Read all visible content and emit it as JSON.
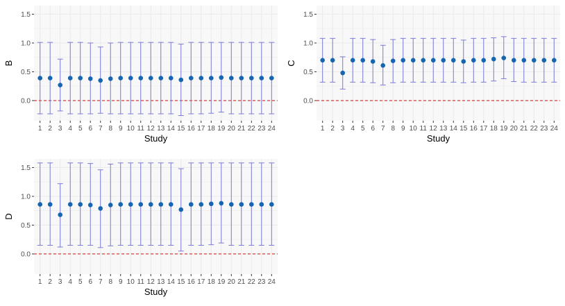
{
  "colors": {
    "panel_bg": "#f8f8f8",
    "grid": "#ebebeb",
    "errorbar": "#7b7bd6",
    "point": "#1565b0",
    "refline": "#cc2b2b",
    "tick_text": "#4d4d4d"
  },
  "chart_data": [
    {
      "type": "scatter",
      "xlabel": "Study",
      "ylabel": "B",
      "categories": [
        "1",
        "2",
        "3",
        "4",
        "5",
        "6",
        "7",
        "8",
        "9",
        "10",
        "11",
        "12",
        "13",
        "14",
        "15",
        "16",
        "17",
        "18",
        "19",
        "20",
        "21",
        "22",
        "23",
        "24"
      ],
      "ylim": [
        -0.35,
        1.65
      ],
      "yticks": [
        0.0,
        0.5,
        1.0,
        1.5
      ],
      "ytick_labels": [
        "0.0",
        "0.5",
        "1.0",
        "1.5"
      ],
      "reference_line": 0,
      "grid": true,
      "estimate": [
        0.39,
        0.39,
        0.27,
        0.39,
        0.39,
        0.38,
        0.35,
        0.38,
        0.39,
        0.39,
        0.39,
        0.39,
        0.39,
        0.39,
        0.36,
        0.39,
        0.39,
        0.39,
        0.4,
        0.39,
        0.39,
        0.39,
        0.39,
        0.39
      ],
      "lower": [
        -0.23,
        -0.23,
        -0.18,
        -0.23,
        -0.23,
        -0.23,
        -0.22,
        -0.23,
        -0.23,
        -0.23,
        -0.23,
        -0.23,
        -0.23,
        -0.23,
        -0.26,
        -0.23,
        -0.23,
        -0.22,
        -0.2,
        -0.23,
        -0.23,
        -0.23,
        -0.23,
        -0.23
      ],
      "upper": [
        1.01,
        1.01,
        0.72,
        1.01,
        1.01,
        1.0,
        0.93,
        1.0,
        1.01,
        1.01,
        1.01,
        1.01,
        1.01,
        1.01,
        0.98,
        1.01,
        1.01,
        1.01,
        1.01,
        1.01,
        1.01,
        1.01,
        1.01,
        1.01
      ]
    },
    {
      "type": "scatter",
      "xlabel": "Study",
      "ylabel": "C",
      "categories": [
        "1",
        "2",
        "3",
        "4",
        "5",
        "6",
        "7",
        "8",
        "9",
        "10",
        "11",
        "12",
        "13",
        "14",
        "15",
        "16",
        "17",
        "18",
        "19",
        "20",
        "21",
        "22",
        "23",
        "24"
      ],
      "ylim": [
        -0.35,
        1.65
      ],
      "yticks": [
        0.0,
        0.5,
        1.0,
        1.5
      ],
      "ytick_labels": [
        "0.0",
        "0.5",
        "1.0",
        "1.5"
      ],
      "reference_line": 0,
      "grid": true,
      "estimate": [
        0.7,
        0.7,
        0.48,
        0.7,
        0.7,
        0.68,
        0.61,
        0.69,
        0.7,
        0.7,
        0.7,
        0.7,
        0.7,
        0.7,
        0.68,
        0.7,
        0.7,
        0.72,
        0.74,
        0.7,
        0.7,
        0.7,
        0.7,
        0.7
      ],
      "lower": [
        0.32,
        0.32,
        0.2,
        0.32,
        0.32,
        0.31,
        0.27,
        0.31,
        0.32,
        0.32,
        0.32,
        0.32,
        0.32,
        0.32,
        0.31,
        0.32,
        0.32,
        0.34,
        0.38,
        0.33,
        0.32,
        0.32,
        0.32,
        0.32
      ],
      "upper": [
        1.08,
        1.08,
        0.76,
        1.08,
        1.08,
        1.06,
        0.96,
        1.06,
        1.08,
        1.08,
        1.08,
        1.08,
        1.08,
        1.08,
        1.05,
        1.08,
        1.08,
        1.09,
        1.11,
        1.08,
        1.08,
        1.08,
        1.08,
        1.08
      ]
    },
    {
      "type": "scatter",
      "xlabel": "Study",
      "ylabel": "D",
      "categories": [
        "1",
        "2",
        "3",
        "4",
        "5",
        "6",
        "7",
        "8",
        "9",
        "10",
        "11",
        "12",
        "13",
        "14",
        "15",
        "16",
        "17",
        "18",
        "19",
        "20",
        "21",
        "22",
        "23",
        "24"
      ],
      "ylim": [
        -0.35,
        1.65
      ],
      "yticks": [
        0.0,
        0.5,
        1.0,
        1.5
      ],
      "ytick_labels": [
        "0.0",
        "0.5",
        "1.0",
        "1.5"
      ],
      "reference_line": 0,
      "grid": true,
      "estimate": [
        0.86,
        0.86,
        0.68,
        0.86,
        0.86,
        0.85,
        0.79,
        0.85,
        0.86,
        0.86,
        0.86,
        0.86,
        0.86,
        0.86,
        0.77,
        0.86,
        0.86,
        0.87,
        0.88,
        0.86,
        0.86,
        0.86,
        0.86,
        0.86
      ],
      "lower": [
        0.15,
        0.15,
        0.12,
        0.15,
        0.15,
        0.15,
        0.11,
        0.14,
        0.15,
        0.15,
        0.15,
        0.15,
        0.15,
        0.15,
        0.05,
        0.15,
        0.15,
        0.16,
        0.19,
        0.15,
        0.15,
        0.15,
        0.15,
        0.15
      ],
      "upper": [
        1.58,
        1.58,
        1.22,
        1.58,
        1.58,
        1.57,
        1.46,
        1.56,
        1.58,
        1.58,
        1.58,
        1.58,
        1.58,
        1.58,
        1.48,
        1.58,
        1.58,
        1.58,
        1.58,
        1.58,
        1.58,
        1.58,
        1.58,
        1.58
      ]
    }
  ]
}
